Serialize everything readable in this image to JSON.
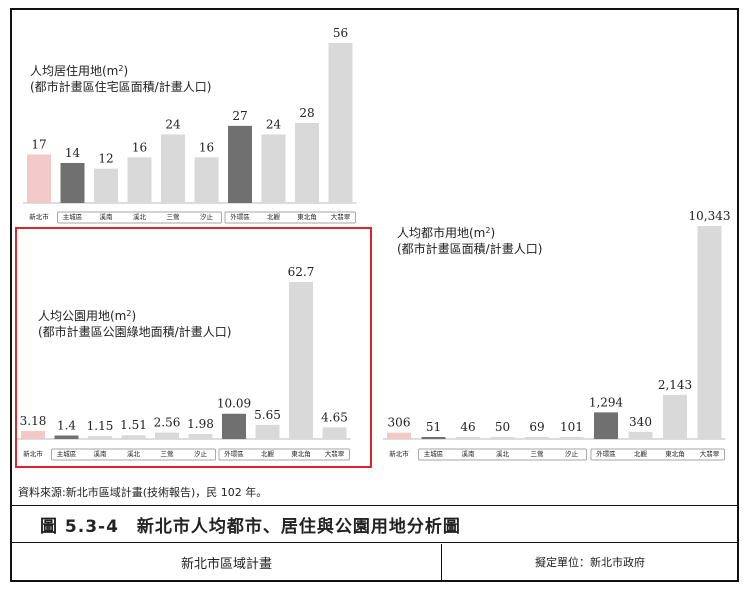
{
  "source_note": "資料來源:新北市區域計畫(技術報告)，民 102 年。",
  "figure_title": "圖 5.3-4　新北市人均都市、居住與公園用地分析圖",
  "footer": {
    "left": "新北市區域計畫",
    "right": "擬定單位：新北市政府"
  },
  "colors": {
    "highlight": "#d9272d",
    "newtaipei": "#f2c9c6",
    "core": "#707070",
    "other": "#d9d9d9"
  },
  "chart_data": [
    {
      "type": "bar",
      "title_line1": "人均居住用地(m",
      "title_sup": "2",
      "title_line1_end": ")",
      "title_line2": "(都市計畫區住宅區面積/計畫人口)",
      "categories": [
        "新北市",
        "主城區",
        "溪南",
        "溪北",
        "三鶯",
        "汐止",
        "外環區",
        "北觀",
        "東北角",
        "大翡翠"
      ],
      "values": [
        17,
        14,
        12,
        16,
        24,
        16,
        27,
        24,
        28,
        56
      ],
      "labels": [
        "17",
        "14",
        "12",
        "16",
        "24",
        "16",
        "27",
        "24",
        "28",
        "56"
      ]
    },
    {
      "type": "bar",
      "title_line1": "人均公園用地(m",
      "title_sup": "2",
      "title_line1_end": ")",
      "title_line2": "(都市計畫區公園綠地面積/計畫人口)",
      "categories": [
        "新北市",
        "主城區",
        "溪南",
        "溪北",
        "三鶯",
        "汐止",
        "外環區",
        "北觀",
        "東北角",
        "大翡翠"
      ],
      "values": [
        3.18,
        1.4,
        1.15,
        1.51,
        2.56,
        1.98,
        10.09,
        5.65,
        62.7,
        4.65
      ],
      "labels": [
        "3.18",
        "1.4",
        "1.15",
        "1.51",
        "2.56",
        "1.98",
        "10.09",
        "5.65",
        "62.7",
        "4.65"
      ]
    },
    {
      "type": "bar",
      "title_line1": "人均都市用地(m",
      "title_sup": "2",
      "title_line1_end": ")",
      "title_line2": "(都市計畫區面積/計畫人口)",
      "categories": [
        "新北市",
        "主城區",
        "溪南",
        "溪北",
        "三鶯",
        "汐止",
        "外環區",
        "北觀",
        "東北角",
        "大翡翠"
      ],
      "values": [
        306,
        51,
        46,
        50,
        69,
        101,
        1294,
        340,
        2143,
        10343
      ],
      "labels": [
        "306",
        "51",
        "46",
        "50",
        "69",
        "101",
        "1,294",
        "340",
        "2,143",
        "10,343"
      ]
    }
  ]
}
